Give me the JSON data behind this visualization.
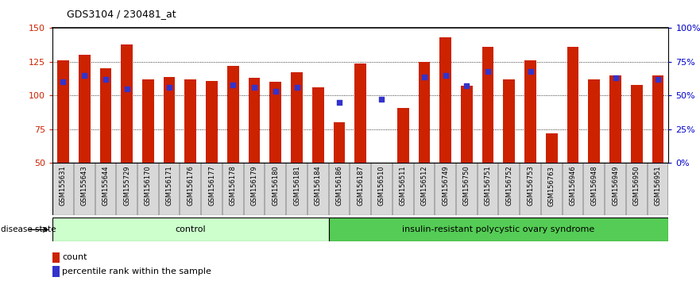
{
  "title": "GDS3104 / 230481_at",
  "samples": [
    "GSM155631",
    "GSM155643",
    "GSM155644",
    "GSM155729",
    "GSM156170",
    "GSM156171",
    "GSM156176",
    "GSM156177",
    "GSM156178",
    "GSM156179",
    "GSM156180",
    "GSM156181",
    "GSM156184",
    "GSM156186",
    "GSM156187",
    "GSM156510",
    "GSM156511",
    "GSM156512",
    "GSM156749",
    "GSM156750",
    "GSM156751",
    "GSM156752",
    "GSM156753",
    "GSM156763",
    "GSM156946",
    "GSM156948",
    "GSM156949",
    "GSM156950",
    "GSM156951"
  ],
  "bar_heights": [
    126,
    130,
    120,
    138,
    112,
    114,
    112,
    111,
    122,
    113,
    110,
    117,
    106,
    80,
    124,
    44,
    91,
    125,
    143,
    107,
    136,
    112,
    126,
    72,
    136,
    112,
    115,
    108,
    115
  ],
  "blue_dots_pct": [
    60,
    65,
    62,
    55,
    null,
    56,
    null,
    null,
    58,
    56,
    53,
    56,
    null,
    45,
    null,
    47,
    null,
    64,
    65,
    57,
    68,
    null,
    68,
    null,
    null,
    null,
    63,
    null,
    62
  ],
  "control_count": 13,
  "disease_count": 16,
  "group_labels": [
    "control",
    "insulin-resistant polycystic ovary syndrome"
  ],
  "ylim_left": [
    50,
    150
  ],
  "yticks_left": [
    50,
    75,
    100,
    125,
    150
  ],
  "yticks_right": [
    0,
    25,
    50,
    75,
    100
  ],
  "ytick_right_labels": [
    "0%",
    "25%",
    "50%",
    "75%",
    "100%"
  ],
  "bar_color": "#cc2200",
  "dot_color": "#3333cc",
  "control_bg": "#ccffcc",
  "disease_bg": "#55cc55",
  "label_color_left": "#cc2200",
  "label_color_right": "#0000cc",
  "bar_width": 0.55,
  "disease_state_label": "disease state"
}
